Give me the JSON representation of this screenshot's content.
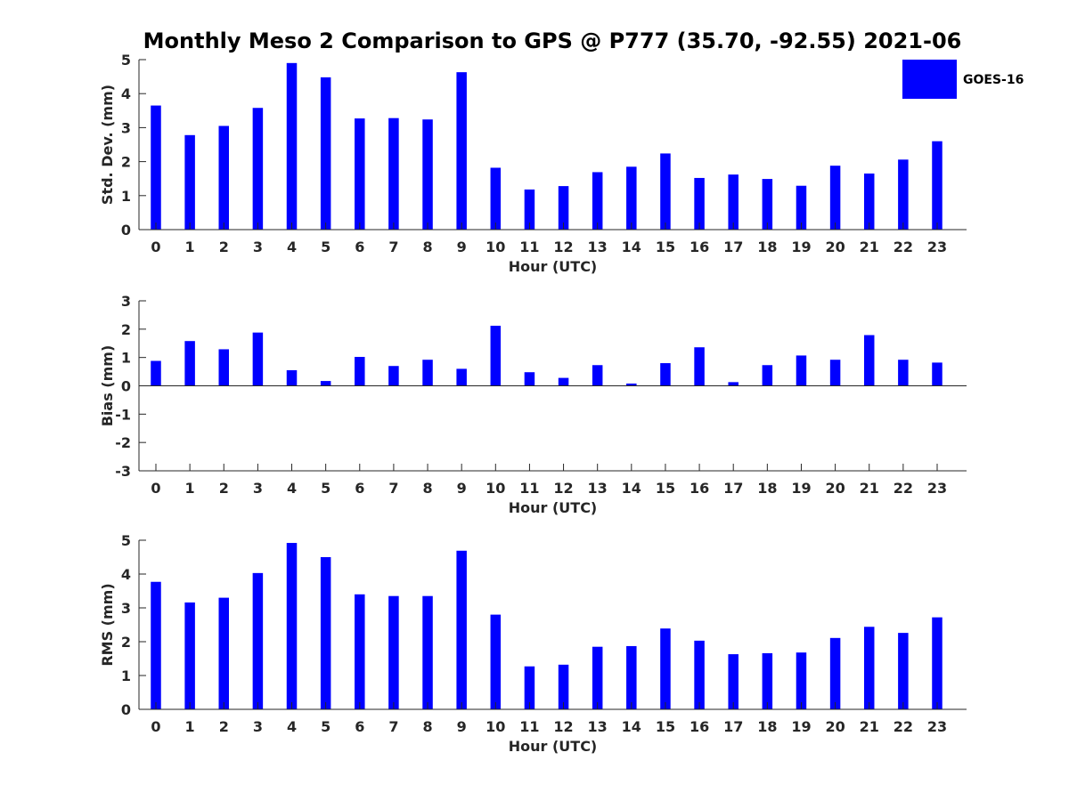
{
  "figure": {
    "title": "Monthly Meso 2 Comparison to GPS @ P777 (35.70, -92.55) 2021-06",
    "legend": {
      "label": "GOES-16",
      "color": "#0000ff",
      "placement": "top-right"
    }
  },
  "chart_data": [
    {
      "type": "bar",
      "xlabel": "Hour (UTC)",
      "ylabel": "Std. Dev. (mm)",
      "ylim": [
        0,
        5
      ],
      "yticks": [
        "0",
        "1",
        "2",
        "3",
        "4",
        "5"
      ],
      "categories": [
        "0",
        "1",
        "2",
        "3",
        "4",
        "5",
        "6",
        "7",
        "8",
        "9",
        "10",
        "11",
        "12",
        "13",
        "14",
        "15",
        "16",
        "17",
        "18",
        "19",
        "20",
        "21",
        "22",
        "23"
      ],
      "series": [
        {
          "name": "GOES-16",
          "color": "#0000ff",
          "values": [
            3.65,
            2.78,
            3.05,
            3.58,
            4.9,
            4.48,
            3.27,
            3.28,
            3.24,
            4.63,
            1.82,
            1.18,
            1.28,
            1.69,
            1.85,
            2.24,
            1.52,
            1.62,
            1.49,
            1.29,
            1.88,
            1.65,
            2.06,
            2.6
          ]
        }
      ]
    },
    {
      "type": "bar",
      "xlabel": "Hour (UTC)",
      "ylabel": "Bias (mm)",
      "ylim": [
        -3,
        3
      ],
      "yticks": [
        "-3",
        "-2",
        "-1",
        "0",
        "1",
        "2",
        "3"
      ],
      "categories": [
        "0",
        "1",
        "2",
        "3",
        "4",
        "5",
        "6",
        "7",
        "8",
        "9",
        "10",
        "11",
        "12",
        "13",
        "14",
        "15",
        "16",
        "17",
        "18",
        "19",
        "20",
        "21",
        "22",
        "23"
      ],
      "series": [
        {
          "name": "GOES-16",
          "color": "#0000ff",
          "values": [
            0.88,
            1.58,
            1.29,
            1.88,
            0.55,
            0.17,
            1.02,
            0.7,
            0.92,
            0.6,
            2.12,
            0.48,
            0.28,
            0.73,
            0.08,
            0.8,
            1.36,
            0.13,
            0.73,
            1.07,
            0.92,
            1.79,
            0.92,
            0.82
          ]
        }
      ]
    },
    {
      "type": "bar",
      "xlabel": "Hour (UTC)",
      "ylabel": "RMS (mm)",
      "ylim": [
        0,
        5
      ],
      "yticks": [
        "0",
        "1",
        "2",
        "3",
        "4",
        "5"
      ],
      "categories": [
        "0",
        "1",
        "2",
        "3",
        "4",
        "5",
        "6",
        "7",
        "8",
        "9",
        "10",
        "11",
        "12",
        "13",
        "14",
        "15",
        "16",
        "17",
        "18",
        "19",
        "20",
        "21",
        "22",
        "23"
      ],
      "series": [
        {
          "name": "GOES-16",
          "color": "#0000ff",
          "values": [
            3.77,
            3.16,
            3.3,
            4.03,
            4.92,
            4.5,
            3.4,
            3.35,
            3.35,
            4.69,
            2.8,
            1.27,
            1.32,
            1.85,
            1.87,
            2.39,
            2.03,
            1.63,
            1.66,
            1.68,
            2.11,
            2.44,
            2.26,
            2.72
          ]
        }
      ]
    }
  ]
}
